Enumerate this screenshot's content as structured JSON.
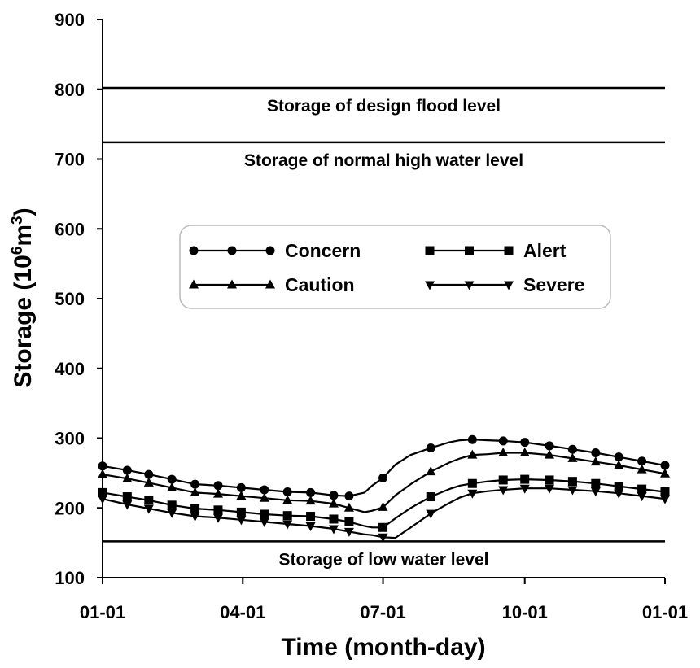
{
  "chart_data": {
    "type": "line",
    "xlabel": "Time (month-day)",
    "ylabel": {
      "prefix": "Storage (10",
      "sup1": "6",
      "mid": "m",
      "sup2": "3",
      "suffix": ")"
    },
    "ylim": [
      100,
      900
    ],
    "yticks": [
      100,
      200,
      300,
      400,
      500,
      600,
      700,
      800,
      900
    ],
    "xlim": [
      0,
      365
    ],
    "xticks": [
      {
        "label": "01-01",
        "day": 0
      },
      {
        "label": "04-01",
        "day": 91
      },
      {
        "label": "07-01",
        "day": 182
      },
      {
        "label": "10-01",
        "day": 274
      },
      {
        "label": "01-01",
        "day": 365
      }
    ],
    "grid": false,
    "legend_position": "center",
    "reference_lines": [
      {
        "label": "Storage of design flood level",
        "value": 802
      },
      {
        "label": "Storage of normal high water level",
        "value": 724
      },
      {
        "label": "Storage of low water level",
        "value": 152
      }
    ],
    "series": [
      {
        "name": "Concern",
        "marker": "circle",
        "x": [
          0,
          16,
          30,
          45,
          60,
          75,
          90,
          105,
          120,
          135,
          150,
          160,
          170,
          175,
          182,
          190,
          200,
          213,
          225,
          232,
          240,
          250,
          260,
          274,
          290,
          305,
          320,
          335,
          350,
          365
        ],
        "y": [
          260,
          254,
          248,
          241,
          234,
          232,
          229,
          226,
          223,
          222,
          218,
          217,
          222,
          232,
          243,
          262,
          276,
          286,
          294,
          297,
          298,
          297,
          296,
          294,
          289,
          284,
          279,
          273,
          267,
          261
        ]
      },
      {
        "name": "Caution",
        "marker": "triangle-up",
        "x": [
          0,
          16,
          30,
          45,
          60,
          75,
          90,
          105,
          120,
          135,
          150,
          160,
          170,
          175,
          182,
          190,
          200,
          213,
          225,
          232,
          240,
          250,
          260,
          274,
          290,
          305,
          320,
          335,
          350,
          365
        ],
        "y": [
          248,
          242,
          236,
          229,
          222,
          220,
          217,
          214,
          211,
          210,
          206,
          200,
          194,
          196,
          201,
          218,
          234,
          252,
          265,
          271,
          276,
          277,
          279,
          279,
          276,
          271,
          266,
          261,
          255,
          249
        ]
      },
      {
        "name": "Alert",
        "marker": "square",
        "x": [
          0,
          16,
          30,
          45,
          60,
          75,
          90,
          105,
          120,
          135,
          150,
          160,
          170,
          175,
          182,
          190,
          200,
          213,
          225,
          232,
          240,
          250,
          260,
          274,
          290,
          305,
          320,
          335,
          350,
          365
        ],
        "y": [
          222,
          216,
          211,
          204,
          199,
          197,
          194,
          191,
          189,
          188,
          184,
          180,
          174,
          172,
          172,
          185,
          200,
          216,
          227,
          232,
          235,
          238,
          240,
          241,
          240,
          238,
          235,
          231,
          227,
          223
        ]
      },
      {
        "name": "Severe",
        "marker": "triangle-down",
        "x": [
          0,
          16,
          30,
          45,
          60,
          75,
          90,
          105,
          120,
          135,
          150,
          160,
          170,
          175,
          182,
          190,
          200,
          213,
          225,
          232,
          240,
          250,
          260,
          274,
          290,
          305,
          320,
          335,
          350,
          365
        ],
        "y": [
          213,
          205,
          199,
          193,
          188,
          186,
          183,
          180,
          177,
          174,
          170,
          166,
          162,
          161,
          158,
          157,
          172,
          192,
          207,
          215,
          221,
          224,
          226,
          228,
          228,
          226,
          224,
          221,
          217,
          213
        ]
      }
    ],
    "markers_at_days": [
      0,
      16,
      30,
      45,
      60,
      75,
      90,
      105,
      120,
      135,
      150,
      160,
      182,
      213,
      240,
      260,
      274,
      290,
      305,
      320,
      335,
      350,
      365
    ]
  }
}
